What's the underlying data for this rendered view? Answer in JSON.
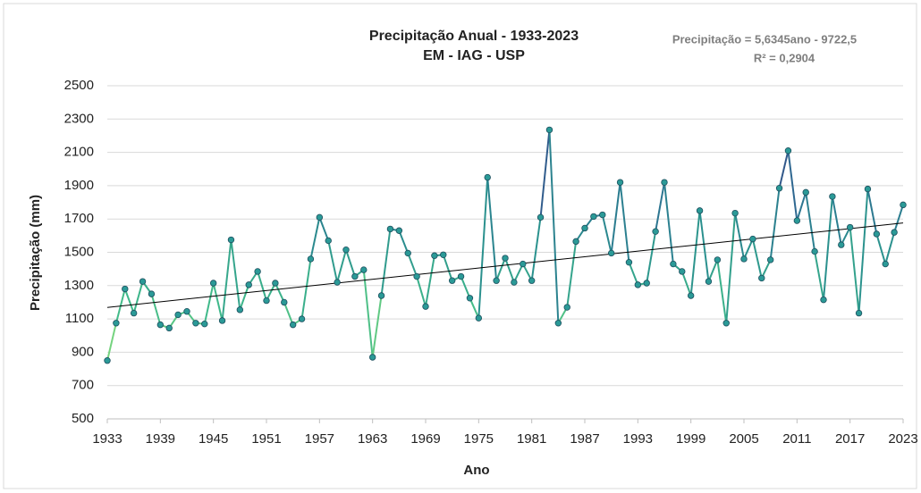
{
  "chart_data": {
    "type": "line",
    "title": "Precipitação Anual - 1933-2023",
    "subtitle": "EM - IAG - USP",
    "x_label": "Ano",
    "y_label": "Precipitação (mm)",
    "x": [
      1933,
      1934,
      1935,
      1936,
      1937,
      1938,
      1939,
      1940,
      1941,
      1942,
      1943,
      1944,
      1945,
      1946,
      1947,
      1948,
      1949,
      1950,
      1951,
      1952,
      1953,
      1954,
      1955,
      1956,
      1957,
      1958,
      1959,
      1960,
      1961,
      1962,
      1963,
      1964,
      1965,
      1966,
      1967,
      1968,
      1969,
      1970,
      1971,
      1972,
      1973,
      1974,
      1975,
      1976,
      1977,
      1978,
      1979,
      1980,
      1981,
      1982,
      1983,
      1984,
      1985,
      1986,
      1987,
      1988,
      1989,
      1990,
      1991,
      1992,
      1993,
      1994,
      1995,
      1996,
      1997,
      1998,
      1999,
      2000,
      2001,
      2002,
      2003,
      2004,
      2005,
      2006,
      2007,
      2008,
      2009,
      2010,
      2011,
      2012,
      2013,
      2014,
      2015,
      2016,
      2017,
      2018,
      2019,
      2020,
      2021,
      2022,
      2023
    ],
    "series": [
      {
        "values": [
          850,
          1075,
          1280,
          1135,
          1325,
          1250,
          1065,
          1045,
          1125,
          1145,
          1075,
          1070,
          1315,
          1090,
          1575,
          1155,
          1305,
          1385,
          1210,
          1315,
          1200,
          1065,
          1100,
          1460,
          1710,
          1570,
          1320,
          1515,
          1355,
          1395,
          870,
          1240,
          1640,
          1630,
          1495,
          1355,
          1175,
          1480,
          1485,
          1330,
          1355,
          1225,
          1105,
          1950,
          1330,
          1465,
          1320,
          1430,
          1330,
          1710,
          2235,
          1075,
          1170,
          1565,
          1645,
          1715,
          1725,
          1495,
          1920,
          1440,
          1305,
          1315,
          1625,
          1920,
          1430,
          1385,
          1240,
          1750,
          1325,
          1455,
          1075,
          1735,
          1460,
          1580,
          1345,
          1455,
          1885,
          2110,
          1690,
          1860,
          1505,
          1215,
          1835,
          1545,
          1650,
          1135,
          1880,
          1610,
          1430,
          1620,
          1785
        ],
        "colormap": [
          "#8fe07a",
          "#3fb98a",
          "#2a8f8e",
          "#2f6a92",
          "#35317a"
        ],
        "marker_color": "#2b9a97"
      }
    ],
    "xlim": [
      1933,
      2023
    ],
    "xticks": [
      1933,
      1939,
      1945,
      1951,
      1957,
      1963,
      1969,
      1975,
      1981,
      1987,
      1993,
      1999,
      2005,
      2011,
      2017,
      2023
    ],
    "ylim": [
      500,
      2500
    ],
    "yticks": [
      500,
      700,
      900,
      1100,
      1300,
      1500,
      1700,
      1900,
      2100,
      2300,
      2500
    ],
    "grid": true,
    "trendline": {
      "equation": "Precipitação = 5,6345ano - 9722,5",
      "r2": "R² = 0,2904",
      "slope": 5.6345,
      "intercept": -9722.5,
      "color": "#000000"
    }
  }
}
